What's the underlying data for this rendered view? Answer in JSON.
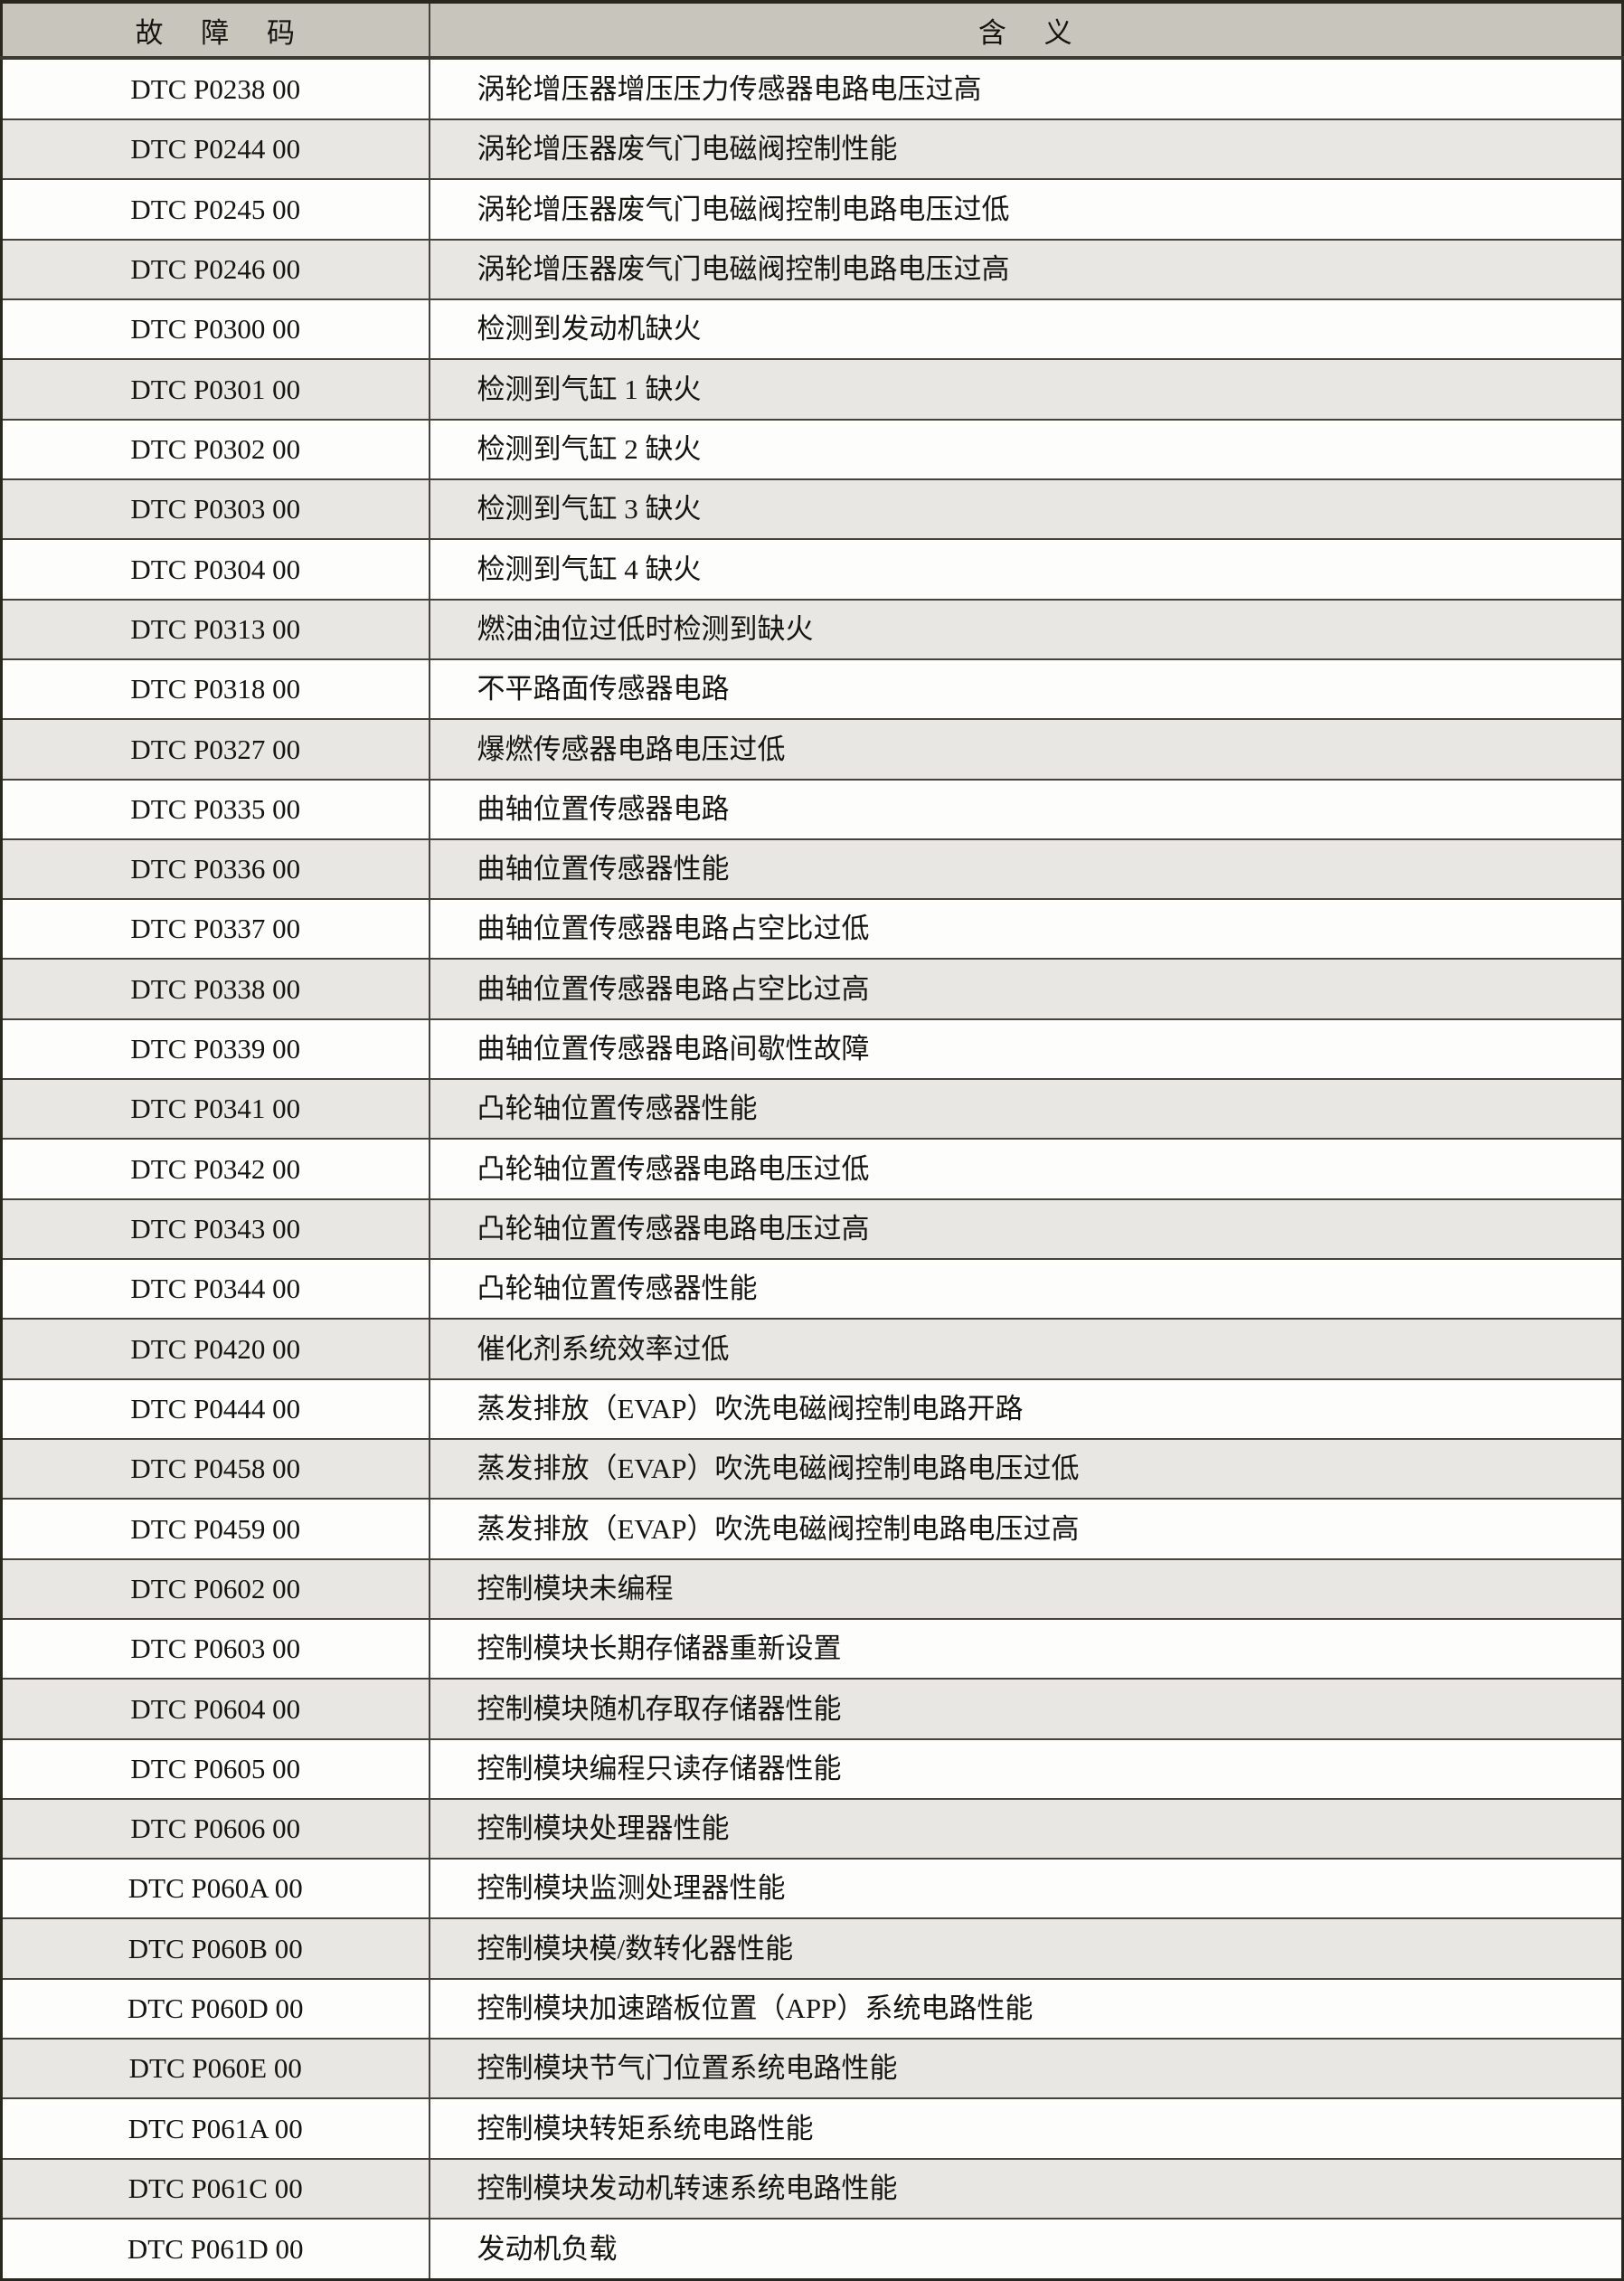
{
  "colors": {
    "page_bg": "#ffffff",
    "header_bg": "#c8c5bc",
    "row_bg": "#fdfdfb",
    "row_alt_bg": "#e9e7e3",
    "border": "#45433b",
    "border_heavy": "#29281f",
    "text": "#15140f"
  },
  "table": {
    "headers": {
      "code": "故 障 码",
      "meaning": "含 义"
    },
    "rows": [
      {
        "code": "DTC P0238 00",
        "meaning": "涡轮增压器增压压力传感器电路电压过高"
      },
      {
        "code": "DTC P0244 00",
        "meaning": "涡轮增压器废气门电磁阀控制性能"
      },
      {
        "code": "DTC P0245 00",
        "meaning": "涡轮增压器废气门电磁阀控制电路电压过低"
      },
      {
        "code": "DTC P0246 00",
        "meaning": "涡轮增压器废气门电磁阀控制电路电压过高"
      },
      {
        "code": "DTC P0300 00",
        "meaning": "检测到发动机缺火"
      },
      {
        "code": "DTC P0301 00",
        "meaning": "检测到气缸 1 缺火"
      },
      {
        "code": "DTC P0302 00",
        "meaning": "检测到气缸 2 缺火"
      },
      {
        "code": "DTC P0303 00",
        "meaning": "检测到气缸 3 缺火"
      },
      {
        "code": "DTC P0304 00",
        "meaning": "检测到气缸 4 缺火"
      },
      {
        "code": "DTC P0313 00",
        "meaning": "燃油油位过低时检测到缺火"
      },
      {
        "code": "DTC P0318 00",
        "meaning": "不平路面传感器电路"
      },
      {
        "code": "DTC P0327 00",
        "meaning": "爆燃传感器电路电压过低"
      },
      {
        "code": "DTC P0335 00",
        "meaning": "曲轴位置传感器电路"
      },
      {
        "code": "DTC P0336 00",
        "meaning": "曲轴位置传感器性能"
      },
      {
        "code": "DTC P0337 00",
        "meaning": "曲轴位置传感器电路占空比过低"
      },
      {
        "code": "DTC P0338 00",
        "meaning": "曲轴位置传感器电路占空比过高"
      },
      {
        "code": "DTC P0339 00",
        "meaning": "曲轴位置传感器电路间歇性故障"
      },
      {
        "code": "DTC P0341 00",
        "meaning": "凸轮轴位置传感器性能"
      },
      {
        "code": "DTC P0342 00",
        "meaning": "凸轮轴位置传感器电路电压过低"
      },
      {
        "code": "DTC P0343 00",
        "meaning": "凸轮轴位置传感器电路电压过高"
      },
      {
        "code": "DTC P0344 00",
        "meaning": "凸轮轴位置传感器性能"
      },
      {
        "code": "DTC P0420 00",
        "meaning": "催化剂系统效率过低"
      },
      {
        "code": "DTC P0444 00",
        "meaning": "蒸发排放（EVAP）吹洗电磁阀控制电路开路"
      },
      {
        "code": "DTC P0458 00",
        "meaning": "蒸发排放（EVAP）吹洗电磁阀控制电路电压过低"
      },
      {
        "code": "DTC P0459 00",
        "meaning": "蒸发排放（EVAP）吹洗电磁阀控制电路电压过高"
      },
      {
        "code": "DTC P0602 00",
        "meaning": "控制模块未编程"
      },
      {
        "code": "DTC P0603 00",
        "meaning": "控制模块长期存储器重新设置"
      },
      {
        "code": "DTC P0604 00",
        "meaning": "控制模块随机存取存储器性能"
      },
      {
        "code": "DTC P0605 00",
        "meaning": "控制模块编程只读存储器性能"
      },
      {
        "code": "DTC P0606 00",
        "meaning": "控制模块处理器性能"
      },
      {
        "code": "DTC P060A 00",
        "meaning": "控制模块监测处理器性能"
      },
      {
        "code": "DTC P060B 00",
        "meaning": "控制模块模/数转化器性能"
      },
      {
        "code": "DTC P060D 00",
        "meaning": "控制模块加速踏板位置（APP）系统电路性能"
      },
      {
        "code": "DTC P060E 00",
        "meaning": "控制模块节气门位置系统电路性能"
      },
      {
        "code": "DTC P061A 00",
        "meaning": "控制模块转矩系统电路性能"
      },
      {
        "code": "DTC P061C 00",
        "meaning": "控制模块发动机转速系统电路性能"
      },
      {
        "code": "DTC P061D 00",
        "meaning": "发动机负载"
      }
    ]
  }
}
